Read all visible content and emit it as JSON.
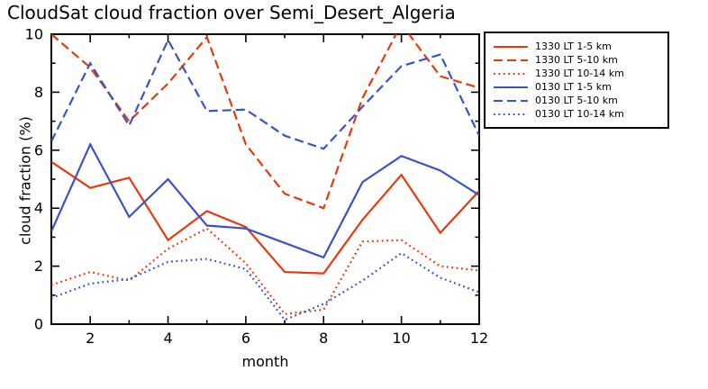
{
  "chart_data": {
    "type": "line",
    "title": "CloudSat cloud fraction over Semi_Desert_Algeria",
    "xlabel": "month",
    "ylabel": "cloud fraction (%)",
    "xlim": [
      1,
      12
    ],
    "ylim": [
      0,
      10
    ],
    "x_ticks": [
      2,
      4,
      6,
      8,
      10,
      12
    ],
    "y_ticks": [
      0,
      2,
      4,
      6,
      8,
      10
    ],
    "grid": false,
    "legend_position": "top-right-outside",
    "colors": {
      "red": "#e23b0e",
      "blue": "#3a53c4",
      "axis": "#000000",
      "background": "#ffffff"
    },
    "x": [
      1,
      2,
      3,
      4,
      5,
      6,
      7,
      8,
      9,
      10,
      11,
      12
    ],
    "series": [
      {
        "name": "1330 LT 1-5 km",
        "color": "#e23b0e",
        "style": "solid",
        "values": [
          5.6,
          4.7,
          5.05,
          2.9,
          3.9,
          3.35,
          1.8,
          1.75,
          3.6,
          5.15,
          3.15,
          4.6
        ]
      },
      {
        "name": "1330 LT 5-10 km",
        "color": "#e23b0e",
        "style": "dashed",
        "values": [
          10.0,
          8.85,
          7.0,
          8.3,
          9.9,
          6.2,
          4.5,
          4.0,
          7.8,
          10.35,
          8.55,
          8.15
        ]
      },
      {
        "name": "1330 LT 10-14 km",
        "color": "#e23b0e",
        "style": "dotted",
        "values": [
          1.35,
          1.8,
          1.5,
          2.6,
          3.3,
          2.1,
          0.35,
          0.5,
          2.85,
          2.9,
          2.0,
          1.85
        ]
      },
      {
        "name": "0130 LT 1-5 km",
        "color": "#3a53c4",
        "style": "solid",
        "values": [
          3.2,
          6.2,
          3.7,
          5.0,
          3.4,
          3.3,
          2.8,
          2.3,
          4.9,
          5.8,
          5.3,
          4.45
        ]
      },
      {
        "name": "0130 LT 5-10 km",
        "color": "#3a53c4",
        "style": "dashed",
        "values": [
          6.3,
          9.0,
          6.85,
          9.8,
          7.35,
          7.4,
          6.5,
          6.05,
          7.5,
          8.9,
          9.3,
          6.5
        ]
      },
      {
        "name": "0130 LT 10-14 km",
        "color": "#3a53c4",
        "style": "dotted",
        "values": [
          0.9,
          1.4,
          1.55,
          2.15,
          2.25,
          1.9,
          0.15,
          0.7,
          1.5,
          2.45,
          1.6,
          1.1
        ]
      }
    ]
  }
}
